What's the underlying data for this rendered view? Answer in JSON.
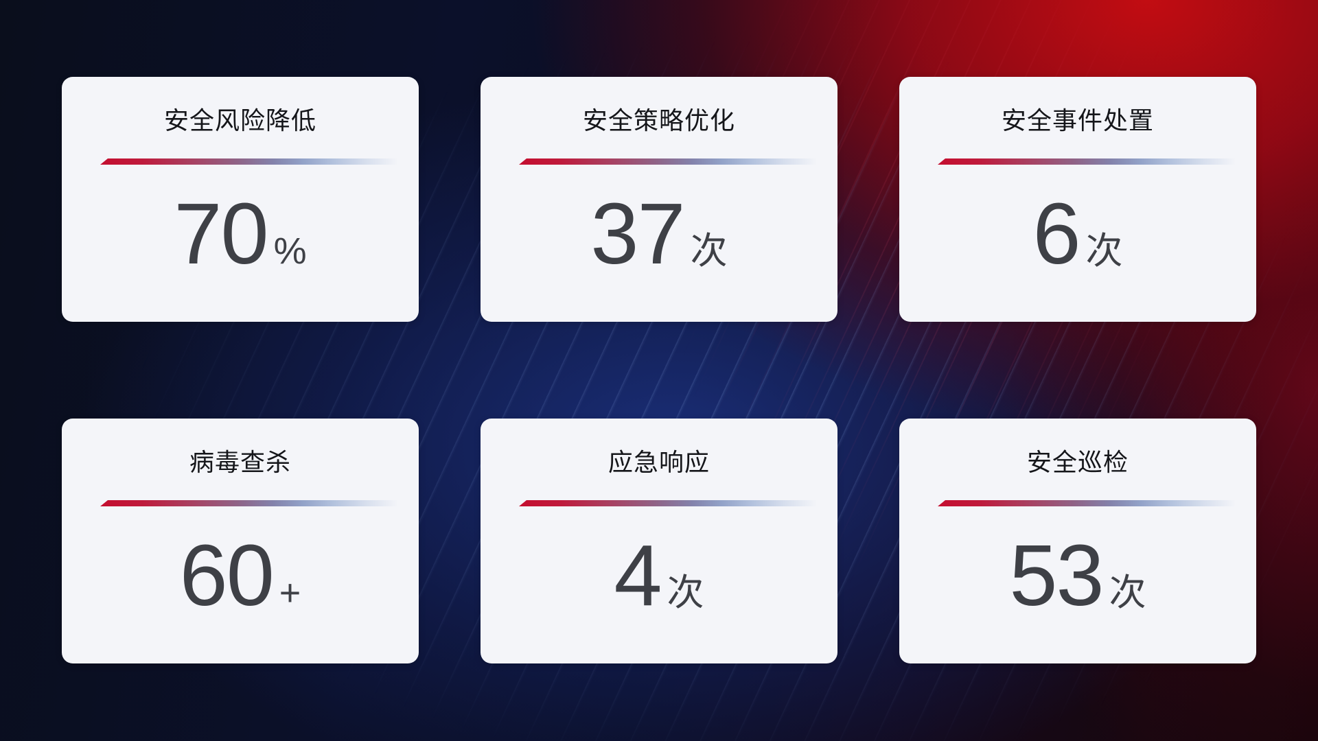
{
  "cards": [
    {
      "title": "安全风险降低",
      "value": "70",
      "unit": "%"
    },
    {
      "title": "安全策略优化",
      "value": "37",
      "unit": "次"
    },
    {
      "title": "安全事件处置",
      "value": "6",
      "unit": "次"
    },
    {
      "title": "病毒查杀",
      "value": "60",
      "unit": "+"
    },
    {
      "title": "应急响应",
      "value": "4",
      "unit": "次"
    },
    {
      "title": "安全巡检",
      "value": "53",
      "unit": "次"
    }
  ],
  "colors": {
    "card_background": "#f4f5f9",
    "title_text": "#15161a",
    "value_text": "#3e4046",
    "divider_red": "#c40e2f",
    "divider_blue": "#92a2c8",
    "background_navy": "#0a0e1f",
    "background_blue": "#1c3282",
    "background_red": "#c00d12"
  }
}
